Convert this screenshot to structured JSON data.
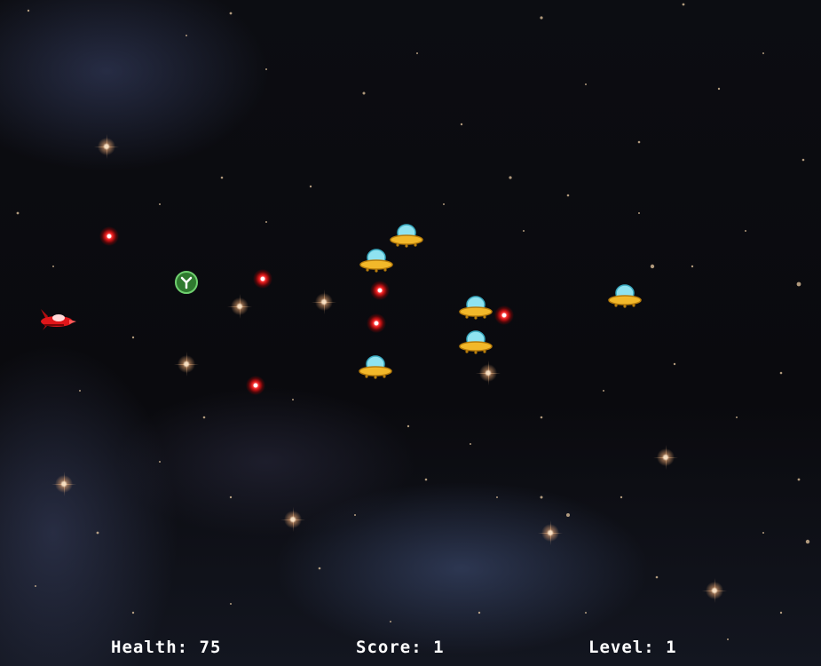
{
  "hud": {
    "health_label": "Health:",
    "health_value": "75",
    "score_label": "Score:",
    "score_value": "1",
    "level_label": "Level:",
    "level_value": "1"
  },
  "colors": {
    "hud_text": "#ffffff",
    "laser": "#ff2a2a",
    "player_ship": "#e0161a",
    "ufo_dome": "#8fe3f0",
    "ufo_saucer": "#f2b82a",
    "powerup": "#3a8f3a"
  },
  "icons": {
    "player": "red-spaceship-icon",
    "enemy": "ufo-icon",
    "projectile": "red-laser-icon",
    "powerup": "green-powerup-icon"
  }
}
